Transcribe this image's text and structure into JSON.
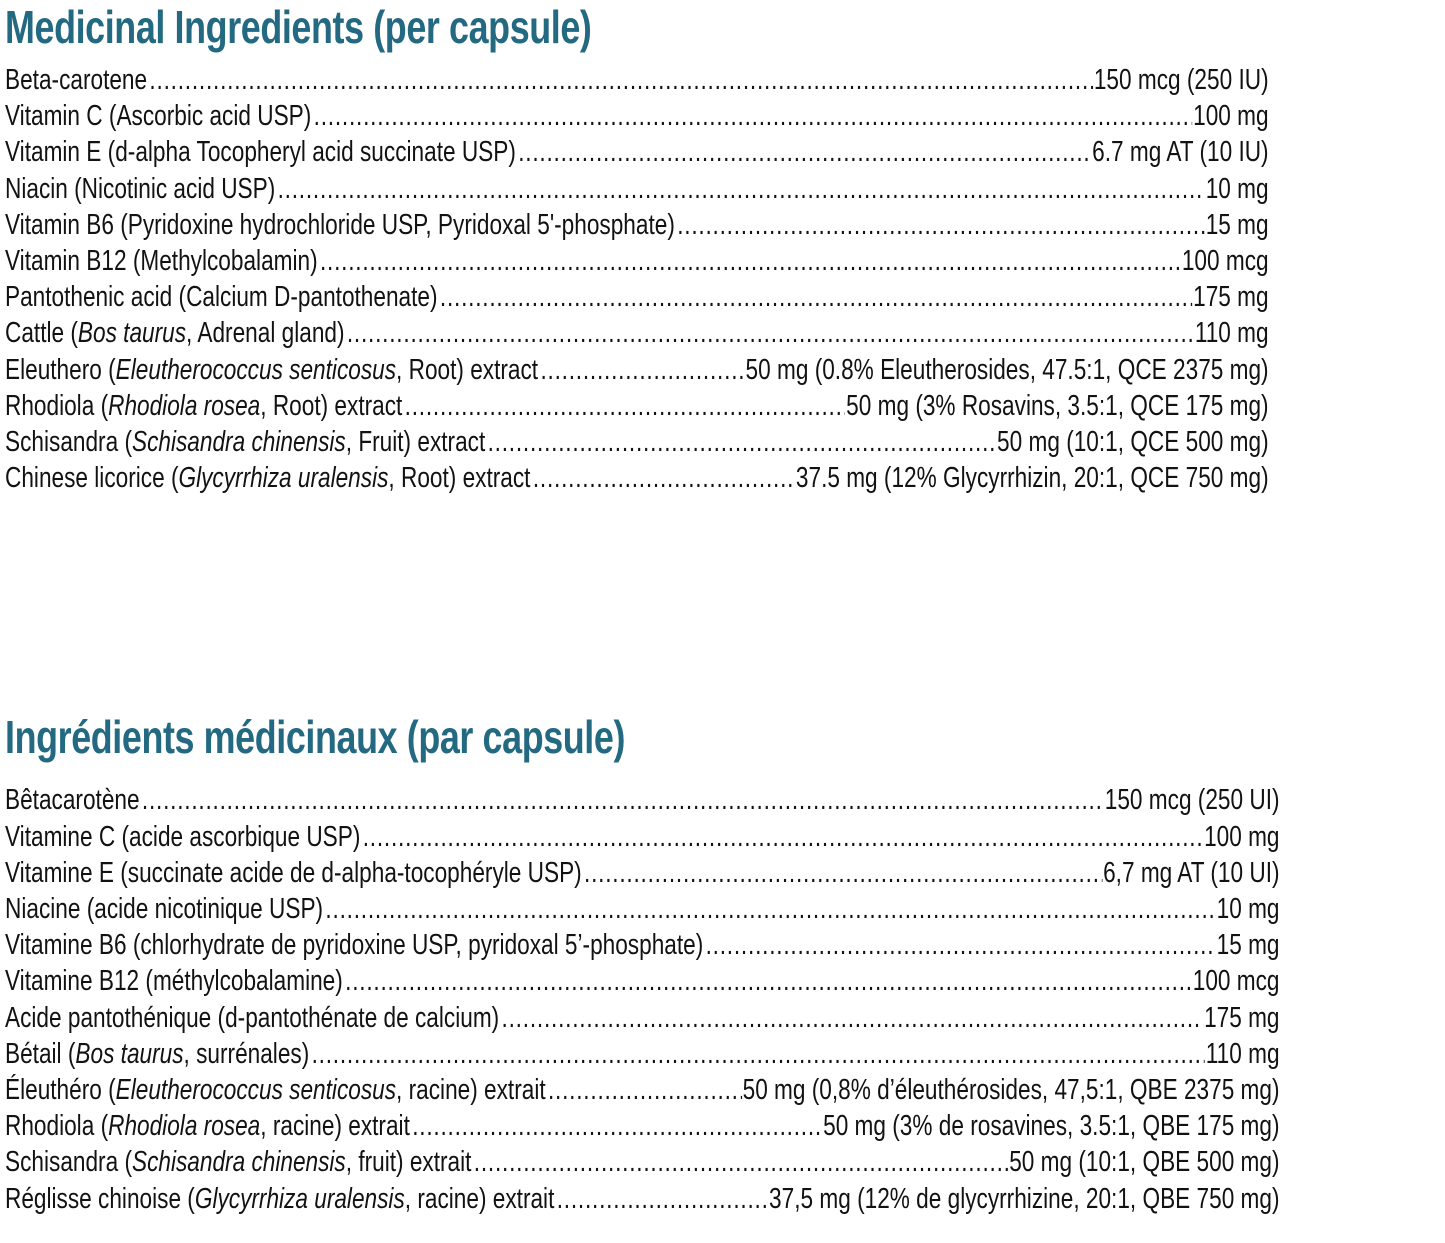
{
  "page": {
    "background_color": "#ffffff",
    "text_color": "#121212",
    "accent_color": "#236981"
  },
  "sections": [
    {
      "id": "english",
      "title": "Medicinal Ingredients (per capsule)",
      "rows": [
        {
          "name": [
            {
              "t": "Beta-carotene"
            }
          ],
          "value": "150 mcg (250 IU)"
        },
        {
          "name": [
            {
              "t": "Vitamin C (Ascorbic acid USP)"
            }
          ],
          "value": "100 mg"
        },
        {
          "name": [
            {
              "t": "Vitamin E (d-alpha Tocopheryl acid succinate USP)"
            }
          ],
          "value": "6.7 mg AT (10 IU)"
        },
        {
          "name": [
            {
              "t": "Niacin (Nicotinic acid USP)"
            }
          ],
          "value": "10 mg"
        },
        {
          "name": [
            {
              "t": "Vitamin B6 (Pyridoxine hydrochloride USP, Pyridoxal 5'-phosphate)"
            }
          ],
          "value": "15 mg"
        },
        {
          "name": [
            {
              "t": "Vitamin B12 (Methylcobalamin)"
            }
          ],
          "value": "100 mcg"
        },
        {
          "name": [
            {
              "t": "Pantothenic acid (Calcium D-pantothenate)"
            }
          ],
          "value": "175 mg"
        },
        {
          "name": [
            {
              "t": "Cattle ("
            },
            {
              "t": "Bos taurus",
              "i": true
            },
            {
              "t": ", Adrenal gland)"
            }
          ],
          "value": "110 mg"
        },
        {
          "name": [
            {
              "t": "Eleuthero ("
            },
            {
              "t": "Eleutherococcus senticosus",
              "i": true
            },
            {
              "t": ", Root) extract"
            }
          ],
          "value": "50 mg (0.8% Eleutherosides, 47.5:1, QCE 2375 mg)"
        },
        {
          "name": [
            {
              "t": "Rhodiola ("
            },
            {
              "t": "Rhodiola rosea",
              "i": true
            },
            {
              "t": ", Root) extract"
            }
          ],
          "value": "50 mg (3% Rosavins, 3.5:1, QCE 175 mg)"
        },
        {
          "name": [
            {
              "t": "Schisandra ("
            },
            {
              "t": "Schisandra chinensis",
              "i": true
            },
            {
              "t": ", Fruit) extract"
            }
          ],
          "value": "50 mg (10:1, QCE 500 mg)"
        },
        {
          "name": [
            {
              "t": "Chinese licorice ("
            },
            {
              "t": "Glycyrrhiza uralensis",
              "i": true
            },
            {
              "t": ", Root) extract"
            }
          ],
          "value": "37.5 mg (12% Glycyrrhizin, 20:1, QCE 750 mg)"
        }
      ]
    },
    {
      "id": "french",
      "title": "Ingrédients médicinaux (par capsule)",
      "rows": [
        {
          "name": [
            {
              "t": "Bêtacarotène"
            }
          ],
          "value": "150 mcg (250 UI)"
        },
        {
          "name": [
            {
              "t": "Vitamine C (acide ascorbique USP)"
            }
          ],
          "value": "100 mg"
        },
        {
          "name": [
            {
              "t": "Vitamine E (succinate acide de d-alpha-tocophéryle USP)"
            }
          ],
          "value": "6,7 mg AT (10 UI)"
        },
        {
          "name": [
            {
              "t": "Niacine (acide nicotinique USP)"
            }
          ],
          "value": "10 mg"
        },
        {
          "name": [
            {
              "t": "Vitamine B6 (chlorhydrate de pyridoxine USP, pyridoxal 5’-phosphate)"
            }
          ],
          "value": "15 mg"
        },
        {
          "name": [
            {
              "t": "Vitamine B12 (méthylcobalamine)"
            }
          ],
          "value": "100 mcg"
        },
        {
          "name": [
            {
              "t": "Acide pantothénique (d-pantothénate de calcium)"
            }
          ],
          "value": "175 mg"
        },
        {
          "name": [
            {
              "t": "Bétail ("
            },
            {
              "t": "Bos taurus",
              "i": true
            },
            {
              "t": ", surrénales)"
            }
          ],
          "value": "110 mg"
        },
        {
          "name": [
            {
              "t": "Éleuthéro ("
            },
            {
              "t": "Eleutherococcus senticosus",
              "i": true
            },
            {
              "t": ", racine) extrait"
            }
          ],
          "value": "50 mg (0,8% d’éleuthérosides, 47,5:1, QBE 2375 mg)"
        },
        {
          "name": [
            {
              "t": "Rhodiola ("
            },
            {
              "t": "Rhodiola rosea",
              "i": true
            },
            {
              "t": ", racine) extrait"
            }
          ],
          "value": "50 mg (3% de rosavines, 3.5:1, QBE 175 mg)"
        },
        {
          "name": [
            {
              "t": "Schisandra ("
            },
            {
              "t": "Schisandra chinensis",
              "i": true
            },
            {
              "t": ", fruit) extrait"
            }
          ],
          "value": "50 mg (10:1, QBE 500 mg)"
        },
        {
          "name": [
            {
              "t": "Réglisse chinoise ("
            },
            {
              "t": "Glycyrrhiza uralensis",
              "i": true
            },
            {
              "t": ", racine) extrait"
            }
          ],
          "value": "37,5 mg (12% de glycyrrhizine, 20:1, QBE 750 mg)"
        }
      ]
    }
  ]
}
